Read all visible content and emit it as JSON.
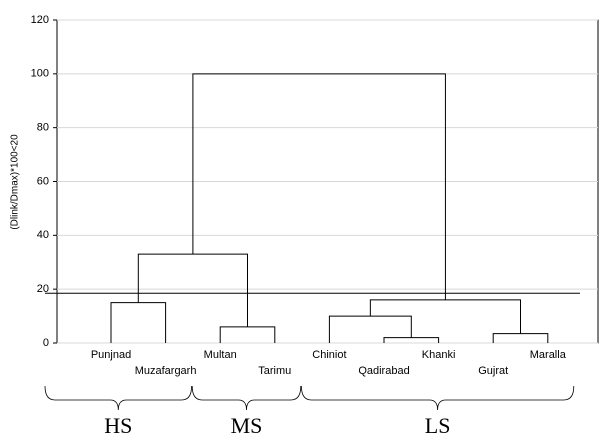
{
  "chart_data": {
    "type": "dendrogram",
    "y_label": "(Dlink/Dmax)*100<20",
    "ylim": [
      0,
      120
    ],
    "yticks": [
      0,
      20,
      40,
      60,
      80,
      100,
      120
    ],
    "grid": true,
    "threshold": 18.5,
    "color": "#000000",
    "tree": {
      "height": 100,
      "children": [
        {
          "height": 33,
          "children": [
            {
              "height": 15,
              "group": "HS",
              "children": [
                {
                  "label": "Punjnad"
                },
                {
                  "label": "Muzafargarh"
                }
              ]
            },
            {
              "height": 6,
              "group": "MS",
              "children": [
                {
                  "label": "Multan"
                },
                {
                  "label": "Tarimu"
                }
              ]
            }
          ]
        },
        {
          "height": 16,
          "group": "LS",
          "children": [
            {
              "height": 10,
              "children": [
                {
                  "label": "Chiniot"
                },
                {
                  "height": 2,
                  "children": [
                    {
                      "label": "Qadirabad"
                    },
                    {
                      "label": "Khanki"
                    }
                  ]
                }
              ]
            },
            {
              "height": 3.5,
              "children": [
                {
                  "label": "Gujrat"
                },
                {
                  "label": "Maralla"
                }
              ]
            }
          ]
        }
      ]
    }
  }
}
